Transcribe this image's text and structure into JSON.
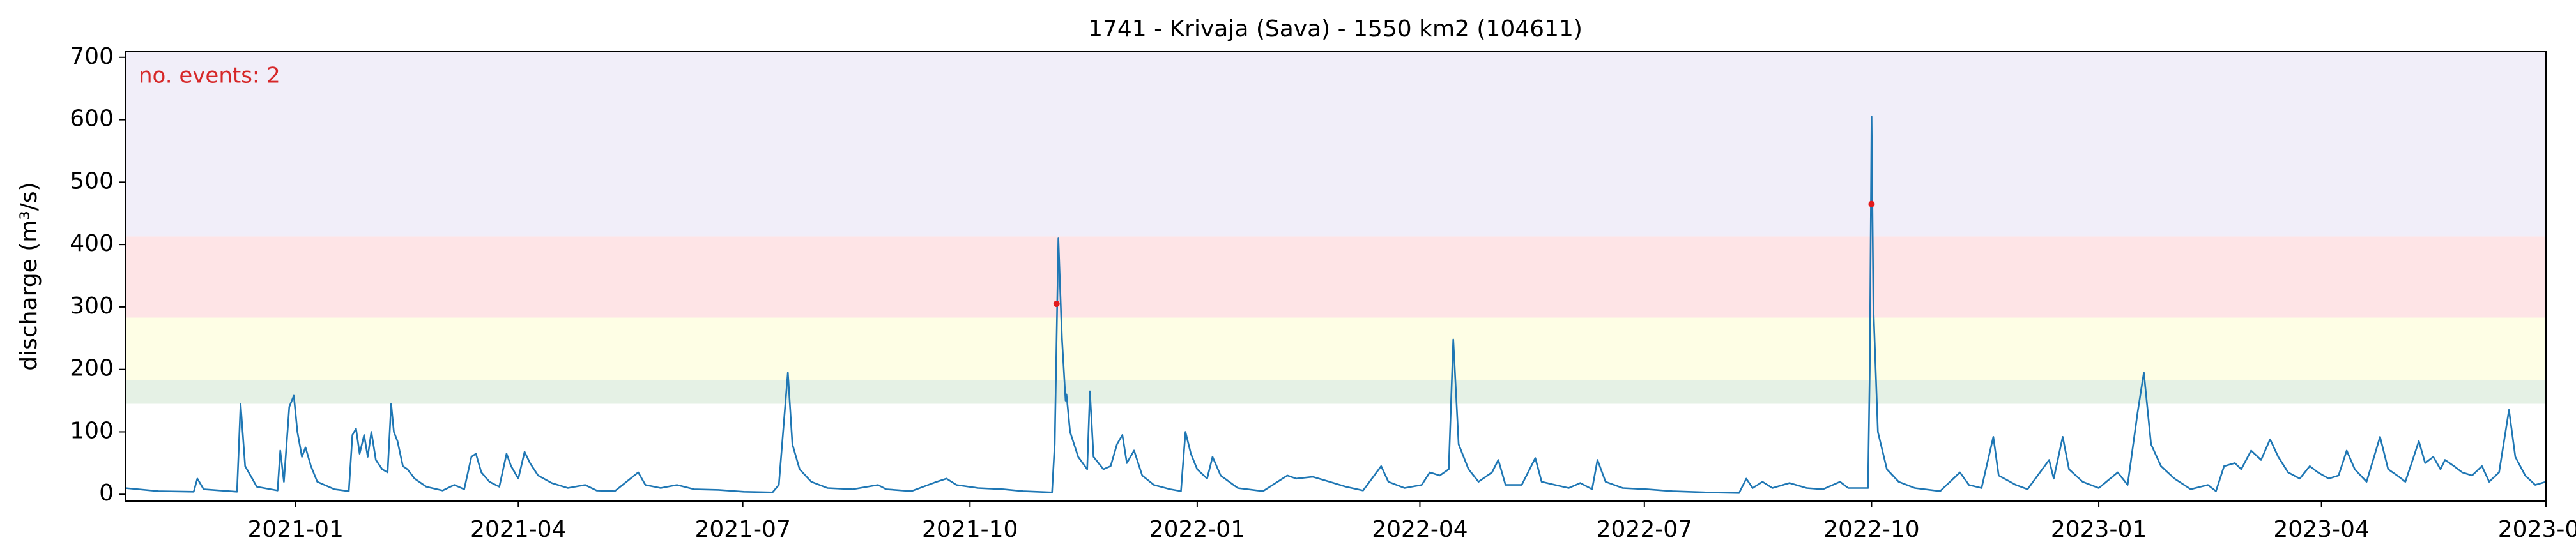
{
  "chart_data": {
    "type": "line",
    "title": "1741 - Krivaja (Sava) - 1550 km2 (104611)",
    "ylabel": "discharge (m³/s)",
    "annotation": "no. events: 2",
    "annotation_color": "#d62728",
    "color": "#1f77b4",
    "xlim": [
      2020.811,
      2023.496
    ],
    "ylim": [
      -11,
      709
    ],
    "xticks": [
      {
        "value": 2021.0,
        "label": "2021-01"
      },
      {
        "value": 2021.247,
        "label": "2021-04"
      },
      {
        "value": 2021.496,
        "label": "2021-07"
      },
      {
        "value": 2021.748,
        "label": "2021-10"
      },
      {
        "value": 2022.0,
        "label": "2022-01"
      },
      {
        "value": 2022.247,
        "label": "2022-04"
      },
      {
        "value": 2022.496,
        "label": "2022-07"
      },
      {
        "value": 2022.748,
        "label": "2022-10"
      },
      {
        "value": 2023.0,
        "label": "2023-01"
      },
      {
        "value": 2023.247,
        "label": "2023-04"
      },
      {
        "value": 2023.496,
        "label": "2023-07"
      }
    ],
    "yticks": [
      0,
      100,
      200,
      300,
      400,
      500,
      600,
      700
    ],
    "bands": [
      {
        "from": 145,
        "to": 183,
        "color": "#e5f1e5"
      },
      {
        "from": 183,
        "to": 283,
        "color": "#fefee5"
      },
      {
        "from": 283,
        "to": 413,
        "color": "#fee4e6"
      },
      {
        "from": 413,
        "to": 709,
        "color": "#f1eef9"
      }
    ],
    "x": [
      2020.811,
      2020.848,
      2020.887,
      2020.891,
      2020.898,
      2020.935,
      2020.939,
      2020.944,
      2020.957,
      2020.98,
      2020.983,
      2020.987,
      2020.993,
      2020.998,
      2021.002,
      2021.007,
      2021.011,
      2021.017,
      2021.024,
      2021.043,
      2021.059,
      2021.063,
      2021.067,
      2021.071,
      2021.076,
      2021.08,
      2021.084,
      2021.089,
      2021.096,
      2021.102,
      2021.106,
      2021.109,
      2021.113,
      2021.119,
      2021.124,
      2021.132,
      2021.145,
      2021.163,
      2021.176,
      2021.187,
      2021.195,
      2021.2,
      2021.206,
      2021.215,
      2021.226,
      2021.234,
      2021.239,
      2021.247,
      2021.254,
      2021.26,
      2021.269,
      2021.284,
      2021.302,
      2021.321,
      2021.334,
      2021.354,
      2021.38,
      2021.388,
      2021.405,
      2021.423,
      2021.442,
      2021.469,
      2021.497,
      2021.529,
      2021.536,
      2021.546,
      2021.551,
      2021.559,
      2021.572,
      2021.59,
      2021.618,
      2021.646,
      2021.655,
      2021.683,
      2021.711,
      2021.722,
      2021.733,
      2021.757,
      2021.785,
      2021.807,
      2021.839,
      2021.842,
      2021.846,
      2021.85,
      2021.854,
      2021.855,
      2021.859,
      2021.868,
      2021.878,
      2021.881,
      2021.885,
      2021.896,
      2021.904,
      2021.911,
      2021.917,
      2021.922,
      2021.93,
      2021.939,
      2021.952,
      2021.97,
      2021.982,
      2021.987,
      2021.993,
      2022.0,
      2022.011,
      2022.017,
      2022.026,
      2022.045,
      2022.073,
      2022.1,
      2022.11,
      2022.128,
      2022.147,
      2022.165,
      2022.184,
      2022.204,
      2022.212,
      2022.23,
      2022.249,
      2022.258,
      2022.269,
      2022.279,
      2022.284,
      2022.29,
      2022.301,
      2022.312,
      2022.327,
      2022.334,
      2022.342,
      2022.36,
      2022.375,
      2022.382,
      2022.397,
      2022.412,
      2022.425,
      2022.438,
      2022.444,
      2022.453,
      2022.472,
      2022.499,
      2022.527,
      2022.564,
      2022.601,
      2022.609,
      2022.616,
      2022.627,
      2022.638,
      2022.657,
      2022.676,
      2022.694,
      2022.713,
      2022.722,
      2022.744,
      2022.746,
      2022.748,
      2022.75,
      2022.755,
      2022.765,
      2022.778,
      2022.796,
      2022.824,
      2022.846,
      2022.856,
      2022.87,
      2022.883,
      2022.889,
      2022.908,
      2022.921,
      2022.945,
      2022.95,
      2022.96,
      2022.967,
      2022.982,
      2023.0,
      2023.021,
      2023.032,
      2023.043,
      2023.05,
      2023.058,
      2023.069,
      2023.084,
      2023.102,
      2023.121,
      2023.13,
      2023.139,
      2023.151,
      2023.158,
      2023.169,
      2023.18,
      2023.19,
      2023.199,
      2023.21,
      2023.223,
      2023.234,
      2023.243,
      2023.255,
      2023.266,
      2023.275,
      2023.284,
      2023.297,
      2023.312,
      2023.321,
      2023.331,
      2023.34,
      2023.347,
      2023.355,
      2023.362,
      2023.371,
      2023.379,
      2023.384,
      2023.394,
      2023.403,
      2023.414,
      2023.425,
      2023.433,
      2023.444,
      2023.455,
      2023.462,
      2023.473,
      2023.484,
      2023.496
    ],
    "values": [
      10,
      5,
      4,
      25,
      8,
      4,
      145,
      45,
      12,
      6,
      70,
      20,
      140,
      158,
      100,
      60,
      75,
      45,
      20,
      8,
      5,
      95,
      105,
      65,
      95,
      60,
      100,
      55,
      40,
      35,
      145,
      100,
      85,
      45,
      40,
      25,
      12,
      6,
      15,
      8,
      60,
      65,
      35,
      20,
      12,
      65,
      45,
      25,
      68,
      50,
      30,
      18,
      10,
      15,
      6,
      5,
      35,
      15,
      10,
      15,
      8,
      7,
      4,
      3,
      15,
      195,
      80,
      40,
      20,
      10,
      8,
      15,
      8,
      5,
      20,
      25,
      15,
      10,
      8,
      5,
      3,
      80,
      410,
      250,
      150,
      160,
      100,
      60,
      40,
      165,
      60,
      40,
      45,
      80,
      95,
      50,
      70,
      30,
      15,
      8,
      5,
      100,
      65,
      40,
      25,
      60,
      30,
      10,
      5,
      30,
      25,
      28,
      20,
      12,
      6,
      45,
      20,
      10,
      15,
      35,
      30,
      40,
      248,
      80,
      40,
      20,
      35,
      55,
      15,
      15,
      58,
      20,
      15,
      10,
      18,
      8,
      55,
      20,
      10,
      8,
      5,
      3,
      2,
      25,
      10,
      20,
      10,
      18,
      10,
      8,
      20,
      10,
      10,
      200,
      605,
      300,
      100,
      40,
      20,
      10,
      5,
      35,
      15,
      10,
      92,
      30,
      15,
      8,
      55,
      25,
      92,
      40,
      20,
      10,
      35,
      15,
      130,
      195,
      80,
      45,
      25,
      8,
      15,
      5,
      45,
      50,
      40,
      70,
      55,
      88,
      60,
      35,
      25,
      45,
      35,
      25,
      30,
      70,
      40,
      20,
      92,
      40,
      30,
      20,
      50,
      85,
      50,
      60,
      40,
      55,
      45,
      35,
      30,
      45,
      20,
      35,
      135,
      60,
      30,
      15,
      20
    ],
    "events": {
      "x": [
        2021.844,
        2022.748
      ],
      "values": [
        305,
        465
      ],
      "color": "#e31a1c"
    }
  }
}
